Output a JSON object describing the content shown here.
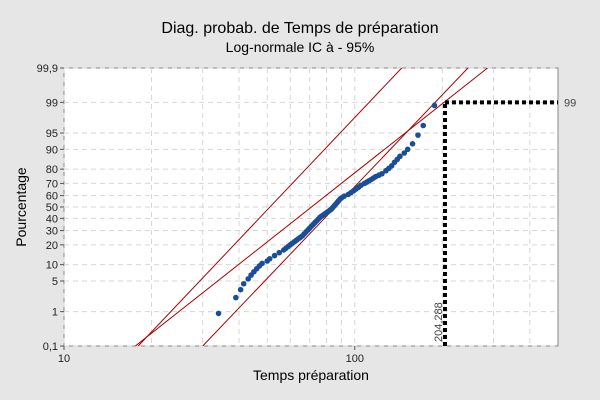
{
  "chart_data": {
    "type": "scatter",
    "title": "Diag. probab. de Temps de préparation",
    "subtitle": "Log-normale IC à - 95%",
    "xlabel": "Temps préparation",
    "ylabel": "Pourcentage",
    "x_scale": "log",
    "y_scale": "normal-probability",
    "xlim": [
      10,
      500
    ],
    "ylim": [
      0.1,
      99.9
    ],
    "x_ticks": [
      {
        "value": 10,
        "label": "10"
      },
      {
        "value": 100,
        "label": "100"
      }
    ],
    "y_ticks": [
      {
        "value": 0.1,
        "label": "0,1"
      },
      {
        "value": 1,
        "label": "1"
      },
      {
        "value": 5,
        "label": "5"
      },
      {
        "value": 10,
        "label": "10"
      },
      {
        "value": 20,
        "label": "20"
      },
      {
        "value": 30,
        "label": "30"
      },
      {
        "value": 40,
        "label": "40"
      },
      {
        "value": 50,
        "label": "50"
      },
      {
        "value": 60,
        "label": "60"
      },
      {
        "value": 70,
        "label": "70"
      },
      {
        "value": 80,
        "label": "80"
      },
      {
        "value": 90,
        "label": "90"
      },
      {
        "value": 95,
        "label": "95"
      },
      {
        "value": 99,
        "label": "99"
      },
      {
        "value": 99.9,
        "label": "99,9"
      }
    ],
    "grid": true,
    "fit": {
      "mu_log10": 1.851,
      "sigma_log10": 0.196
    },
    "ci_upper": [
      [
        18,
        0.1
      ],
      [
        145,
        99.9
      ]
    ],
    "ci_lower": [
      [
        30,
        0.1
      ],
      [
        245,
        99.9
      ]
    ],
    "reference": {
      "percent": 99,
      "x": 204.288,
      "percent_label": "99",
      "x_label": "204,288"
    },
    "points": [
      [
        34,
        0.9
      ],
      [
        39,
        2.2
      ],
      [
        40.5,
        3.3
      ],
      [
        41.5,
        4.4
      ],
      [
        43,
        5.5
      ],
      [
        44,
        6.5
      ],
      [
        45,
        7.5
      ],
      [
        46,
        8.5
      ],
      [
        47,
        9.5
      ],
      [
        48,
        10.5
      ],
      [
        50,
        11.5
      ],
      [
        51,
        12.5
      ],
      [
        53,
        14
      ],
      [
        55,
        15.5
      ],
      [
        57,
        17
      ],
      [
        58,
        18
      ],
      [
        59,
        19
      ],
      [
        60,
        20
      ],
      [
        61,
        21
      ],
      [
        62,
        22
      ],
      [
        63,
        23
      ],
      [
        64,
        24
      ],
      [
        65,
        25
      ],
      [
        66,
        26
      ],
      [
        67,
        27.5
      ],
      [
        68,
        29
      ],
      [
        69,
        30.5
      ],
      [
        70,
        32
      ],
      [
        71,
        33.5
      ],
      [
        72,
        35
      ],
      [
        73,
        36.5
      ],
      [
        74,
        38
      ],
      [
        75,
        39.5
      ],
      [
        76,
        41
      ],
      [
        77,
        42
      ],
      [
        78,
        43
      ],
      [
        79,
        44
      ],
      [
        80,
        45
      ],
      [
        81,
        46
      ],
      [
        82,
        47
      ],
      [
        83,
        48
      ],
      [
        84,
        49.5
      ],
      [
        85,
        51
      ],
      [
        86,
        52.5
      ],
      [
        87,
        54
      ],
      [
        88,
        55.5
      ],
      [
        89,
        57
      ],
      [
        90,
        58
      ],
      [
        92,
        59.5
      ],
      [
        95,
        61
      ],
      [
        97,
        62.5
      ],
      [
        99,
        64
      ],
      [
        101,
        65.5
      ],
      [
        103,
        67
      ],
      [
        105,
        68.5
      ],
      [
        108,
        70
      ],
      [
        110,
        71
      ],
      [
        112,
        72
      ],
      [
        114,
        73
      ],
      [
        116,
        74
      ],
      [
        118,
        75
      ],
      [
        121,
        76
      ],
      [
        124,
        77
      ],
      [
        128,
        79
      ],
      [
        131,
        80.5
      ],
      [
        134,
        82
      ],
      [
        137,
        84
      ],
      [
        140,
        85.5
      ],
      [
        143,
        87
      ],
      [
        148,
        88.5
      ],
      [
        152,
        90
      ],
      [
        158,
        92
      ],
      [
        165,
        94.5
      ],
      [
        172,
        96.5
      ],
      [
        188,
        98.8
      ]
    ]
  }
}
